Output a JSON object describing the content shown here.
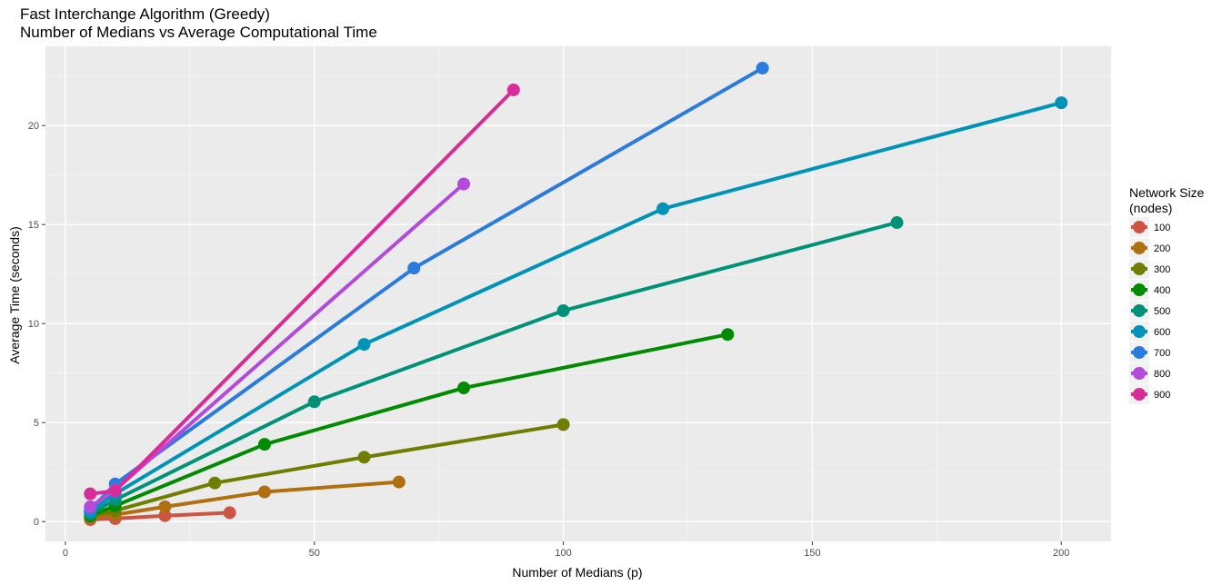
{
  "chart_data": {
    "type": "line",
    "title": "Fast Interchange Algorithm (Greedy)",
    "subtitle": "Number of Medians vs Average Computational Time",
    "xlabel": "Number of Medians (p)",
    "ylabel": "Average Time (seconds)",
    "xlim": [
      -4,
      210
    ],
    "ylim": [
      -1,
      24
    ],
    "xticks": [
      0,
      50,
      100,
      150,
      200
    ],
    "yticks": [
      0,
      5,
      10,
      15,
      20
    ],
    "grid": true,
    "legend": {
      "title_line1": "Network Size",
      "title_line2": "(nodes)",
      "placement": "right"
    },
    "series": [
      {
        "name": "100",
        "color": "#CD5545",
        "points": [
          [
            5,
            0.1
          ],
          [
            10,
            0.15
          ],
          [
            20,
            0.3
          ],
          [
            33,
            0.45
          ]
        ]
      },
      {
        "name": "200",
        "color": "#B06F10",
        "points": [
          [
            5,
            0.2
          ],
          [
            10,
            0.35
          ],
          [
            20,
            0.75
          ],
          [
            40,
            1.5
          ],
          [
            67,
            2.0
          ]
        ]
      },
      {
        "name": "300",
        "color": "#6F7D00",
        "points": [
          [
            5,
            0.25
          ],
          [
            10,
            0.55
          ],
          [
            30,
            1.95
          ],
          [
            60,
            3.25
          ],
          [
            100,
            4.9
          ]
        ]
      },
      {
        "name": "400",
        "color": "#008B00",
        "points": [
          [
            5,
            0.3
          ],
          [
            10,
            0.8
          ],
          [
            40,
            3.9
          ],
          [
            80,
            6.75
          ],
          [
            133,
            9.45
          ]
        ]
      },
      {
        "name": "500",
        "color": "#009278",
        "points": [
          [
            5,
            0.4
          ],
          [
            10,
            1.1
          ],
          [
            50,
            6.05
          ],
          [
            100,
            10.65
          ],
          [
            167,
            15.1
          ]
        ]
      },
      {
        "name": "600",
        "color": "#0093B8",
        "points": [
          [
            5,
            0.5
          ],
          [
            10,
            1.4
          ],
          [
            60,
            8.95
          ],
          [
            120,
            15.8
          ],
          [
            200,
            21.15
          ]
        ]
      },
      {
        "name": "700",
        "color": "#2A7BDB",
        "points": [
          [
            5,
            0.6
          ],
          [
            10,
            1.9
          ],
          [
            70,
            12.8
          ],
          [
            140,
            22.9
          ]
        ]
      },
      {
        "name": "800",
        "color": "#B34BDA",
        "points": [
          [
            5,
            0.75
          ],
          [
            10,
            1.6
          ],
          [
            80,
            17.05
          ]
        ]
      },
      {
        "name": "900",
        "color": "#D82C98",
        "points": [
          [
            5,
            1.4
          ],
          [
            10,
            1.55
          ],
          [
            90,
            21.8
          ]
        ]
      }
    ]
  }
}
